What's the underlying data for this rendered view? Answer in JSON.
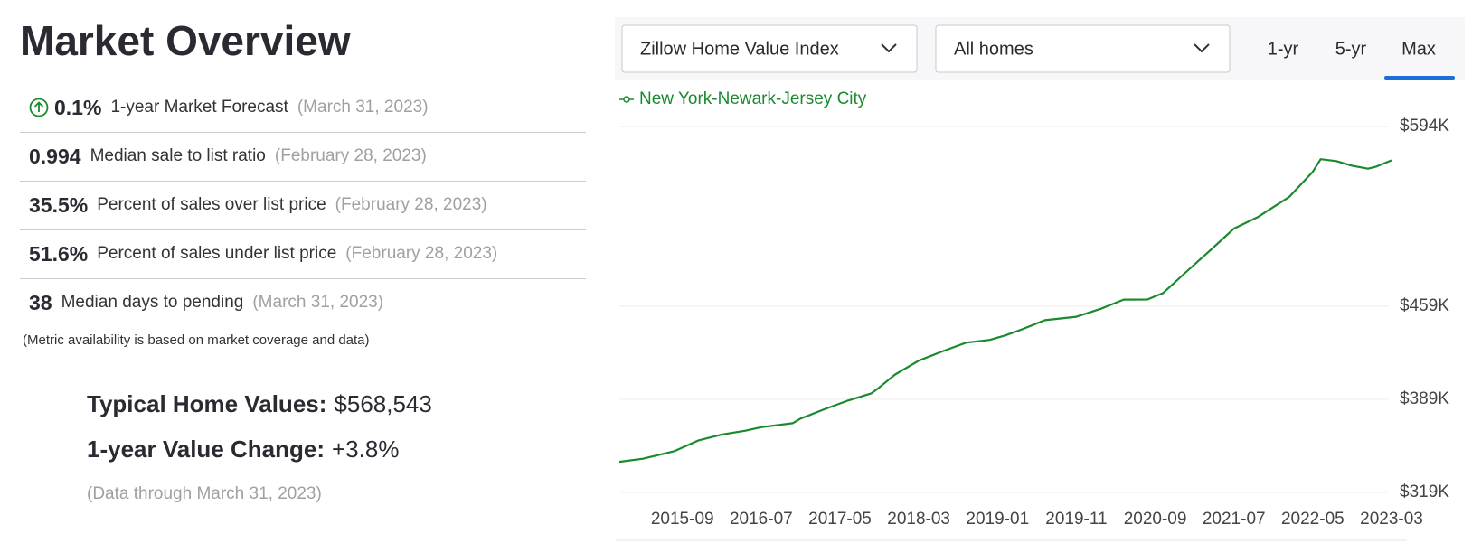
{
  "header": {
    "title": "Market Overview"
  },
  "metrics": [
    {
      "value": "0.1%",
      "label": "1-year Market Forecast",
      "date": "(March 31, 2023)"
    },
    {
      "value": "0.994",
      "label": "Median sale to list ratio",
      "date": "(February 28, 2023)"
    },
    {
      "value": "35.5%",
      "label": "Percent of sales over list price",
      "date": "(February 28, 2023)"
    },
    {
      "value": "51.6%",
      "label": "Percent of sales under list price",
      "date": "(February 28, 2023)"
    },
    {
      "value": "38",
      "label": "Median days to pending",
      "date": "(March 31, 2023)"
    }
  ],
  "note": "(Metric availability is based on market coverage and data)",
  "summary": [
    {
      "label": "Typical Home Values:",
      "value": "$568,543"
    },
    {
      "label": "1-year Value Change:",
      "value": "+3.8%"
    }
  ],
  "data_through": "(Data through March 31, 2023)",
  "controls": {
    "index": "Zillow Home Value Index",
    "home_type": "All homes",
    "tabs": [
      "1-yr",
      "5-yr",
      "Max"
    ],
    "active_tab": 2
  },
  "chart_data": {
    "type": "line",
    "x": [
      "2015-01",
      "2015-04",
      "2015-08",
      "2015-11",
      "2016-02",
      "2016-05",
      "2016-07",
      "2016-11",
      "2016-12",
      "2017-03",
      "2017-06",
      "2017-09",
      "2017-10",
      "2017-12",
      "2018-03",
      "2018-06",
      "2018-09",
      "2018-12",
      "2019-02",
      "2019-04",
      "2019-07",
      "2019-11",
      "2020-02",
      "2020-05",
      "2020-08",
      "2020-10",
      "2021-01",
      "2021-04",
      "2021-07",
      "2021-10",
      "2022-02",
      "2022-05",
      "2022-06",
      "2022-08",
      "2022-10",
      "2022-12",
      "2023-01",
      "2023-03"
    ],
    "series": [
      {
        "name": "New York-Newark-Jersey City",
        "color": "#1b8a2e",
        "values": [
          342000,
          344300,
          350000,
          358000,
          362500,
          365400,
          368000,
          371000,
          374500,
          381500,
          388000,
          393500,
          398000,
          407600,
          418000,
          425000,
          431500,
          433600,
          437000,
          441300,
          448400,
          451000,
          456800,
          463900,
          464000,
          468800,
          485000,
          501000,
          517300,
          525800,
          541000,
          560000,
          569400,
          568000,
          564500,
          562300,
          563700,
          568543
        ]
      }
    ],
    "xlim": [
      "2015-01",
      "2023-03"
    ],
    "xticks": [
      "2015-09",
      "2016-07",
      "2017-05",
      "2018-03",
      "2019-01",
      "2019-11",
      "2020-09",
      "2021-07",
      "2022-05",
      "2023-03"
    ],
    "ylim": [
      319000,
      594000
    ],
    "yticks": [
      {
        "value": 319000,
        "label": "$319K"
      },
      {
        "value": 389000,
        "label": "$389K"
      },
      {
        "value": 459000,
        "label": "$459K"
      },
      {
        "value": 594000,
        "label": "$594K"
      }
    ],
    "grid": true
  }
}
